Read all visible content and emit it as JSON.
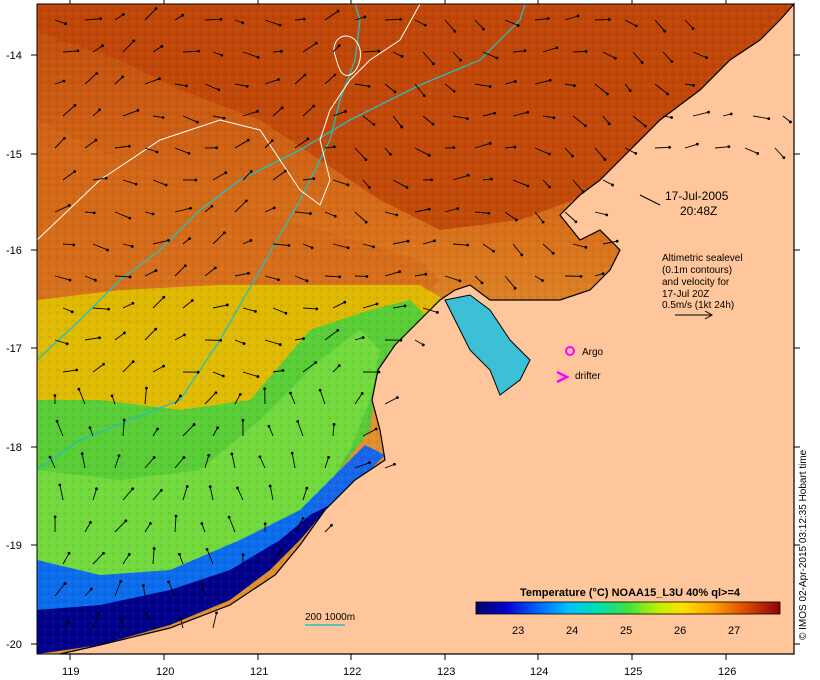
{
  "map": {
    "longitude_ticks": [
      "119",
      "120",
      "121",
      "122",
      "123",
      "124",
      "125",
      "126"
    ],
    "latitude_ticks": [
      "-14",
      "-15",
      "-16",
      "-17",
      "-18",
      "-19",
      "-20"
    ],
    "timestamp_date": "17-Jul-2005",
    "timestamp_time": "20:48Z",
    "legend_lines": [
      "Altimetric sealevel",
      "(0.1m contours)",
      "and velocity for",
      "17-Jul 20Z",
      "0.5m/s (1kt 24h)"
    ],
    "argo_label": "Argo",
    "drifter_label": "drifter",
    "scale_bar_label": "200  1000m",
    "colorbar": {
      "title": "Temperature (°C) NOAA15_L3U 40% ql>=4",
      "ticks": [
        "23",
        "24",
        "25",
        "26",
        "27"
      ],
      "colors": [
        "#00008b",
        "#0000ff",
        "#0080ff",
        "#00e0e0",
        "#30d080",
        "#80e000",
        "#ffff00",
        "#ffa000",
        "#e06000",
        "#b83000",
        "#8b0000"
      ]
    },
    "credit": "© IMOS 02-Apr-2015 03:12:35 Hobart time",
    "colors": {
      "land": "#fec69a",
      "ocean_warm": "#d96a10",
      "ocean_hot": "#c24408",
      "shelf_green": "#40d040",
      "coastal_blue": "#0040e0",
      "deep_blue": "#000080",
      "isobath": "#20c0c0",
      "sealevel_contour": "#ffffff",
      "marker": "#ff00ff"
    }
  }
}
